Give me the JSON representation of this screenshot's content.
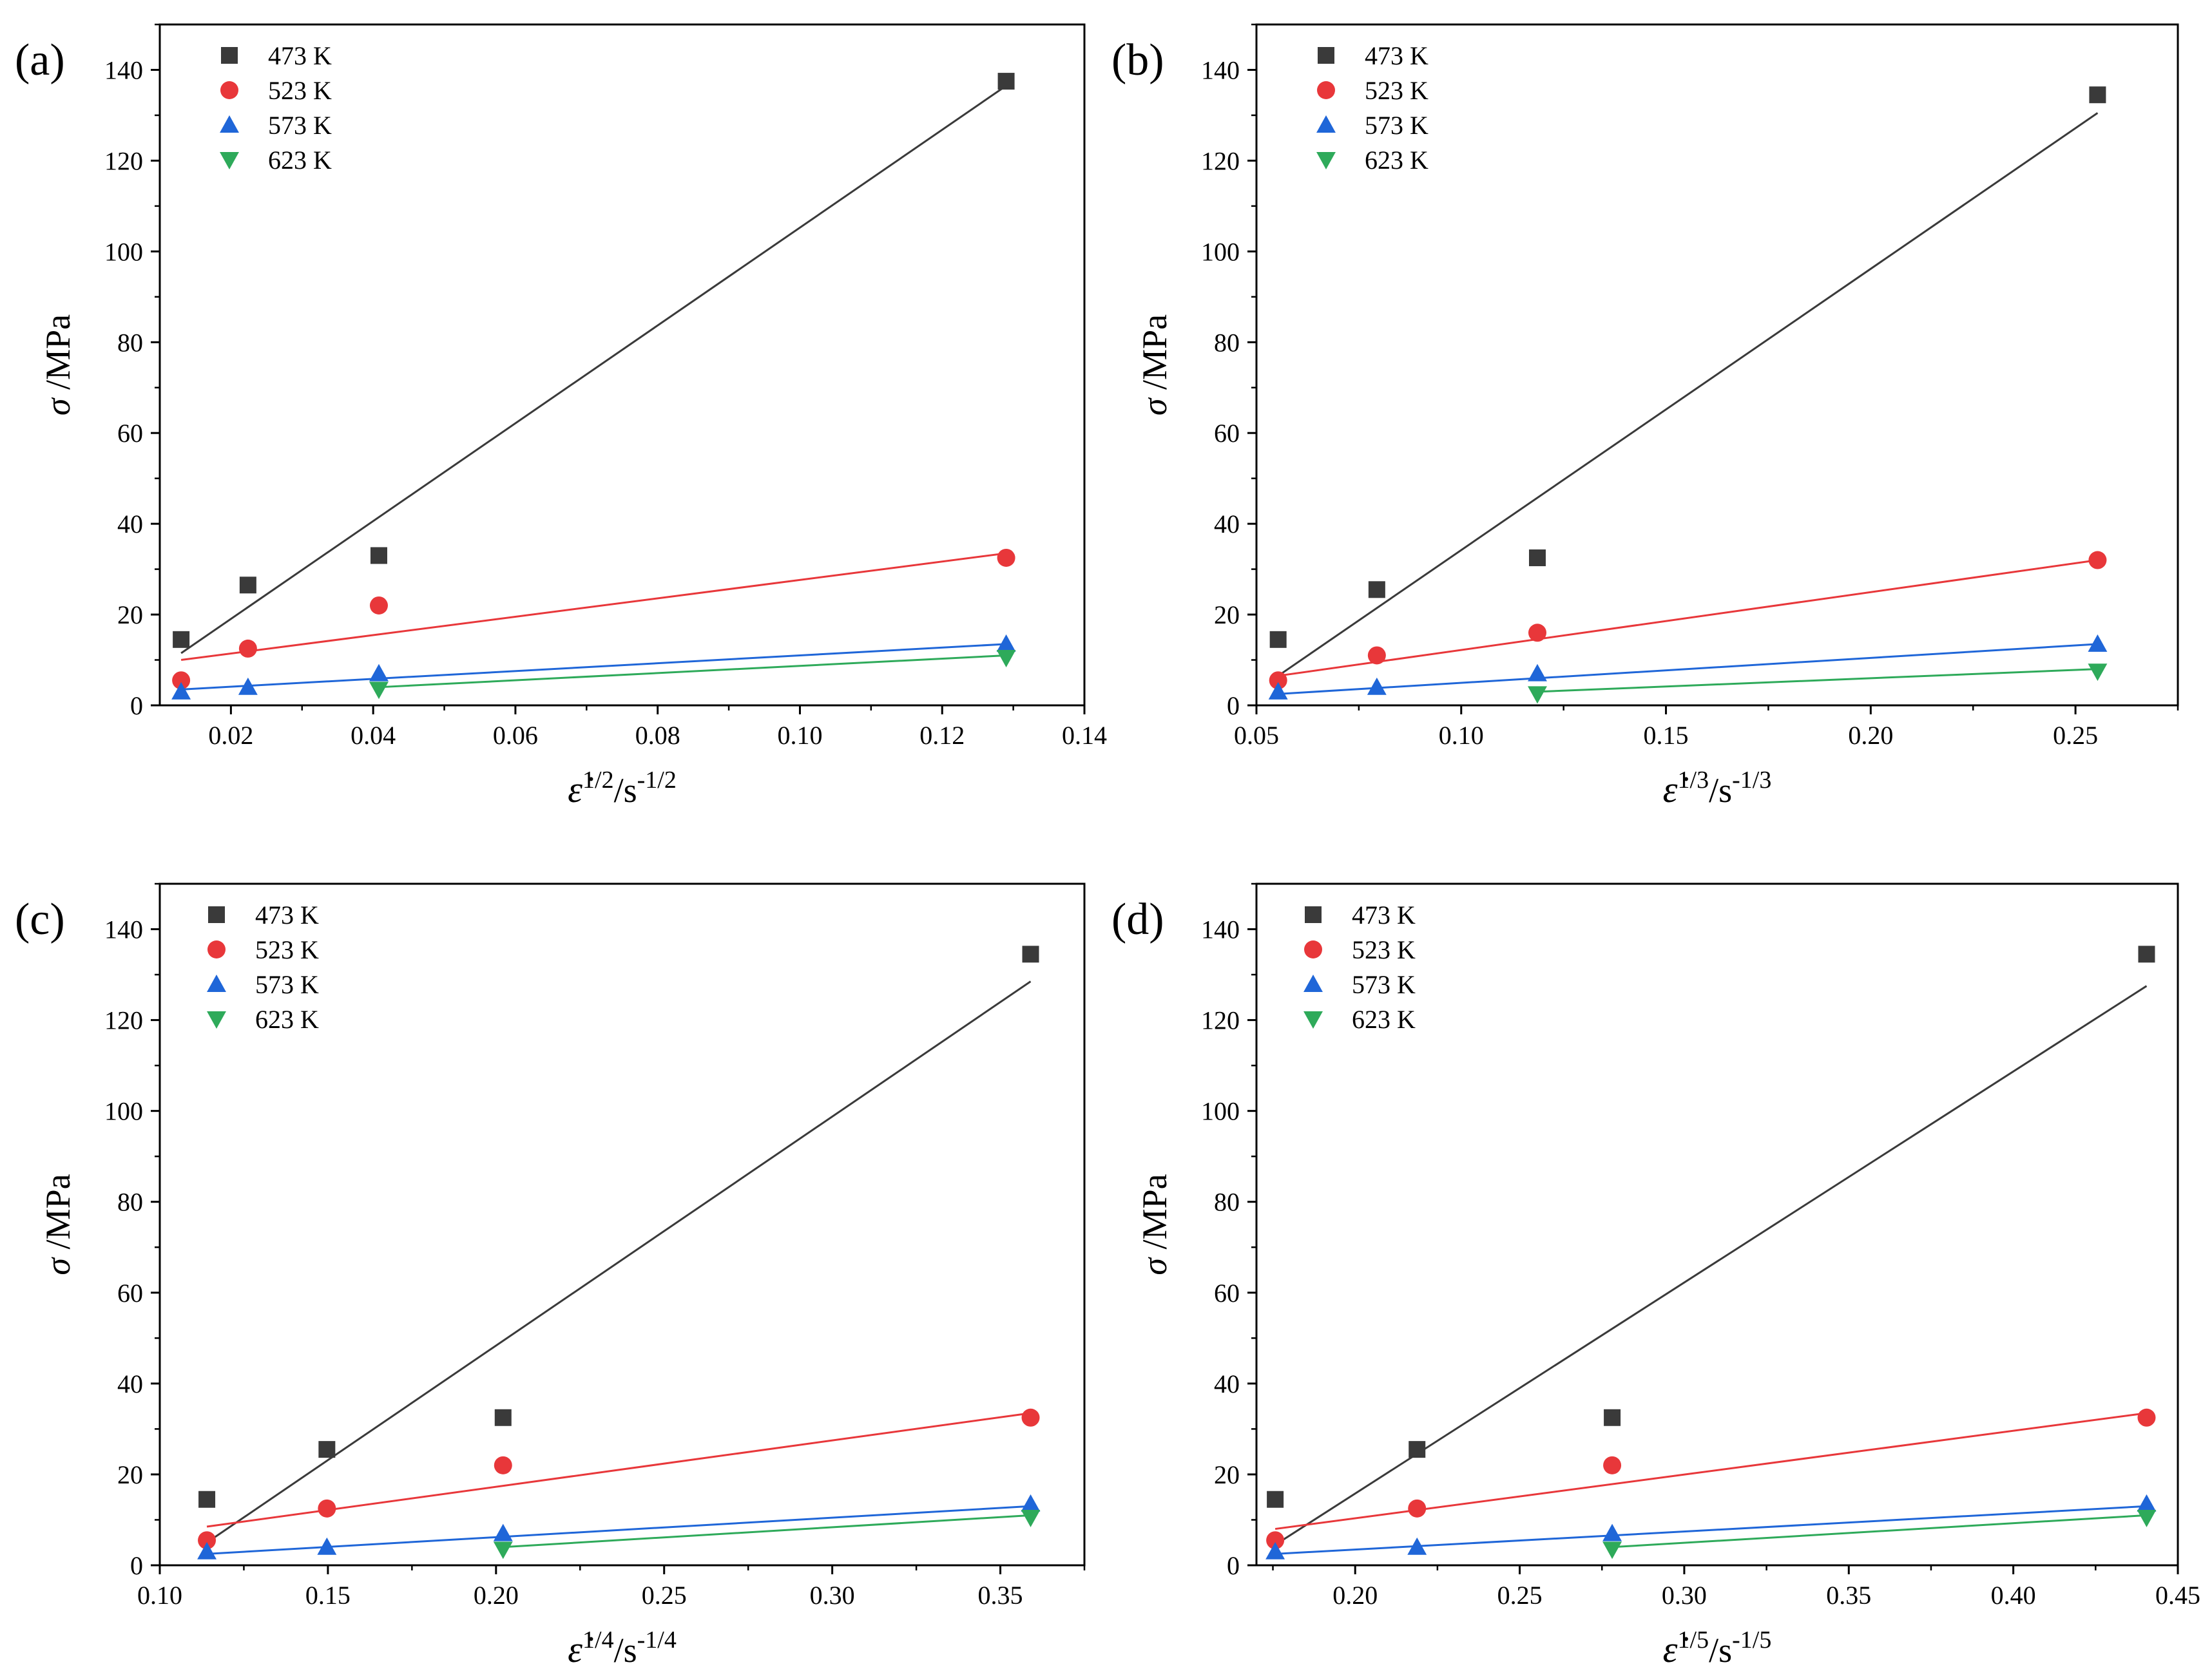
{
  "figure": {
    "colors": {
      "473 K": "#3a3a3a",
      "523 K": "#e8373a",
      "573 K": "#1f66d8",
      "623 K": "#2eaa5a"
    }
  },
  "chart_data": [
    {
      "type": "scatter",
      "panel_label": "(a)",
      "ylabel": "σ /MPa",
      "xlabel": {
        "eps": "ε̇",
        "exp": "1/2",
        "unit": "/s",
        "unit_exp": "-1/2"
      },
      "xlim": [
        0.01,
        0.14
      ],
      "ylim": [
        0,
        150
      ],
      "xticks": [
        0.02,
        0.04,
        0.06,
        0.08,
        0.1,
        0.12,
        0.14
      ],
      "xtick_labels": [
        "0.02",
        "0.04",
        "0.06",
        "0.08",
        "0.10",
        "0.12",
        "0.14"
      ],
      "yticks": [
        0,
        20,
        40,
        60,
        80,
        100,
        120,
        140
      ],
      "ytick_labels": [
        "0",
        "20",
        "40",
        "60",
        "80",
        "100",
        "120",
        "140"
      ],
      "legend": [
        "473 K",
        "523 K",
        "573 K",
        "623 K"
      ],
      "series": [
        {
          "name": "473 K",
          "marker": "square",
          "x": [
            0.013,
            0.0224,
            0.0408,
            0.129
          ],
          "y": [
            14.5,
            26.5,
            33,
            137.5
          ],
          "fit": [
            [
              0.013,
              11.5
            ],
            [
              0.129,
              136.5
            ]
          ]
        },
        {
          "name": "523 K",
          "marker": "circle",
          "x": [
            0.013,
            0.0224,
            0.0408,
            0.129
          ],
          "y": [
            5.5,
            12.5,
            22,
            32.5
          ],
          "fit": [
            [
              0.013,
              10
            ],
            [
              0.129,
              33.5
            ]
          ]
        },
        {
          "name": "573 K",
          "marker": "triangle-up",
          "x": [
            0.013,
            0.0224,
            0.0408,
            0.129
          ],
          "y": [
            3,
            4,
            7,
            13.5
          ],
          "fit": [
            [
              0.013,
              3.5
            ],
            [
              0.129,
              13.5
            ]
          ]
        },
        {
          "name": "623 K",
          "marker": "triangle-down",
          "x": [
            0.0408,
            0.129
          ],
          "y": [
            3.5,
            10.5
          ],
          "fit": [
            [
              0.0408,
              4
            ],
            [
              0.129,
              11
            ]
          ]
        }
      ]
    },
    {
      "type": "scatter",
      "panel_label": "(b)",
      "ylabel": "σ /MPa",
      "xlabel": {
        "eps": "ε̇",
        "exp": "1/3",
        "unit": "/s",
        "unit_exp": "-1/3"
      },
      "xlim": [
        0.05,
        0.275
      ],
      "ylim": [
        0,
        150
      ],
      "xticks": [
        0.05,
        0.1,
        0.15,
        0.2,
        0.25
      ],
      "xtick_labels": [
        "0.05",
        "0.10",
        "0.15",
        "0.20",
        "0.25"
      ],
      "yticks": [
        0,
        20,
        40,
        60,
        80,
        100,
        120,
        140
      ],
      "ytick_labels": [
        "0",
        "20",
        "40",
        "60",
        "80",
        "100",
        "120",
        "140"
      ],
      "legend": [
        "473 K",
        "523 K",
        "573 K",
        "623 K"
      ],
      "series": [
        {
          "name": "473 K",
          "marker": "square",
          "x": [
            0.0553,
            0.0794,
            0.1186,
            0.2554
          ],
          "y": [
            14.5,
            25.5,
            32.5,
            134.5
          ],
          "fit": [
            [
              0.0553,
              6.5
            ],
            [
              0.2554,
              130.5
            ]
          ]
        },
        {
          "name": "523 K",
          "marker": "circle",
          "x": [
            0.0553,
            0.0794,
            0.1186,
            0.2554
          ],
          "y": [
            5.5,
            11,
            16,
            32
          ],
          "fit": [
            [
              0.0553,
              6.5
            ],
            [
              0.2554,
              32
            ]
          ]
        },
        {
          "name": "573 K",
          "marker": "triangle-up",
          "x": [
            0.0553,
            0.0794,
            0.1186,
            0.2554
          ],
          "y": [
            3,
            4,
            7,
            13.5
          ],
          "fit": [
            [
              0.0553,
              2.5
            ],
            [
              0.2554,
              13.5
            ]
          ]
        },
        {
          "name": "623 K",
          "marker": "triangle-down",
          "x": [
            0.1186,
            0.2554
          ],
          "y": [
            2.5,
            7.5
          ],
          "fit": [
            [
              0.1186,
              3
            ],
            [
              0.2554,
              8
            ]
          ]
        }
      ]
    },
    {
      "type": "scatter",
      "panel_label": "(c)",
      "ylabel": "σ /MPa",
      "xlabel": {
        "eps": "ε̇",
        "exp": "1/4",
        "unit": "/s",
        "unit_exp": "-1/4"
      },
      "xlim": [
        0.1,
        0.375
      ],
      "ylim": [
        0,
        150
      ],
      "xticks": [
        0.1,
        0.15,
        0.2,
        0.25,
        0.3,
        0.35
      ],
      "xtick_labels": [
        "0.10",
        "0.15",
        "0.20",
        "0.25",
        "0.30",
        "0.35"
      ],
      "yticks": [
        0,
        20,
        40,
        60,
        80,
        100,
        120,
        140
      ],
      "ytick_labels": [
        "0",
        "20",
        "40",
        "60",
        "80",
        "100",
        "120",
        "140"
      ],
      "legend": [
        "473 K",
        "523 K",
        "573 K",
        "623 K"
      ],
      "series": [
        {
          "name": "473 K",
          "marker": "square",
          "x": [
            0.114,
            0.1497,
            0.2021,
            0.359
          ],
          "y": [
            14.5,
            25.5,
            32.5,
            134.5
          ],
          "fit": [
            [
              0.114,
              5
            ],
            [
              0.359,
              128.5
            ]
          ]
        },
        {
          "name": "523 K",
          "marker": "circle",
          "x": [
            0.114,
            0.1497,
            0.2021,
            0.359
          ],
          "y": [
            5.5,
            12.5,
            22,
            32.5
          ],
          "fit": [
            [
              0.114,
              8.5
            ],
            [
              0.359,
              33.5
            ]
          ]
        },
        {
          "name": "573 K",
          "marker": "triangle-up",
          "x": [
            0.114,
            0.1497,
            0.2021,
            0.359
          ],
          "y": [
            3,
            4,
            7,
            13.5
          ],
          "fit": [
            [
              0.114,
              2.5
            ],
            [
              0.359,
              13
            ]
          ]
        },
        {
          "name": "623 K",
          "marker": "triangle-down",
          "x": [
            0.2021,
            0.359
          ],
          "y": [
            3.5,
            10.5
          ],
          "fit": [
            [
              0.2021,
              4
            ],
            [
              0.359,
              11
            ]
          ]
        }
      ]
    },
    {
      "type": "scatter",
      "panel_label": "(d)",
      "ylabel": "σ /MPa",
      "xlabel": {
        "eps": "ε̇",
        "exp": "1/5",
        "unit": "/s",
        "unit_exp": "-1/5"
      },
      "xlim": [
        0.17,
        0.45
      ],
      "ylim": [
        0,
        150
      ],
      "xticks": [
        0.2,
        0.25,
        0.3,
        0.35,
        0.4,
        0.45
      ],
      "xtick_labels": [
        "0.20",
        "0.25",
        "0.30",
        "0.35",
        "0.40",
        "0.45"
      ],
      "yticks": [
        0,
        20,
        40,
        60,
        80,
        100,
        120,
        140
      ],
      "ytick_labels": [
        "0",
        "20",
        "40",
        "60",
        "80",
        "100",
        "120",
        "140"
      ],
      "legend": [
        "473 K",
        "523 K",
        "573 K",
        "623 K"
      ],
      "series": [
        {
          "name": "473 K",
          "marker": "square",
          "x": [
            0.1757,
            0.2188,
            0.2781,
            0.4405
          ],
          "y": [
            14.5,
            25.5,
            32.5,
            134.5
          ],
          "fit": [
            [
              0.1757,
              4.5
            ],
            [
              0.4405,
              127.5
            ]
          ]
        },
        {
          "name": "523 K",
          "marker": "circle",
          "x": [
            0.1757,
            0.2188,
            0.2781,
            0.4405
          ],
          "y": [
            5.5,
            12.5,
            22,
            32.5
          ],
          "fit": [
            [
              0.1757,
              8
            ],
            [
              0.4405,
              33.5
            ]
          ]
        },
        {
          "name": "573 K",
          "marker": "triangle-up",
          "x": [
            0.1757,
            0.2188,
            0.2781,
            0.4405
          ],
          "y": [
            3,
            4,
            7,
            13.5
          ],
          "fit": [
            [
              0.1757,
              2.5
            ],
            [
              0.4405,
              13
            ]
          ]
        },
        {
          "name": "623 K",
          "marker": "triangle-down",
          "x": [
            0.2781,
            0.4405
          ],
          "y": [
            3.5,
            10.5
          ],
          "fit": [
            [
              0.2781,
              4
            ],
            [
              0.4405,
              11
            ]
          ]
        }
      ]
    }
  ]
}
